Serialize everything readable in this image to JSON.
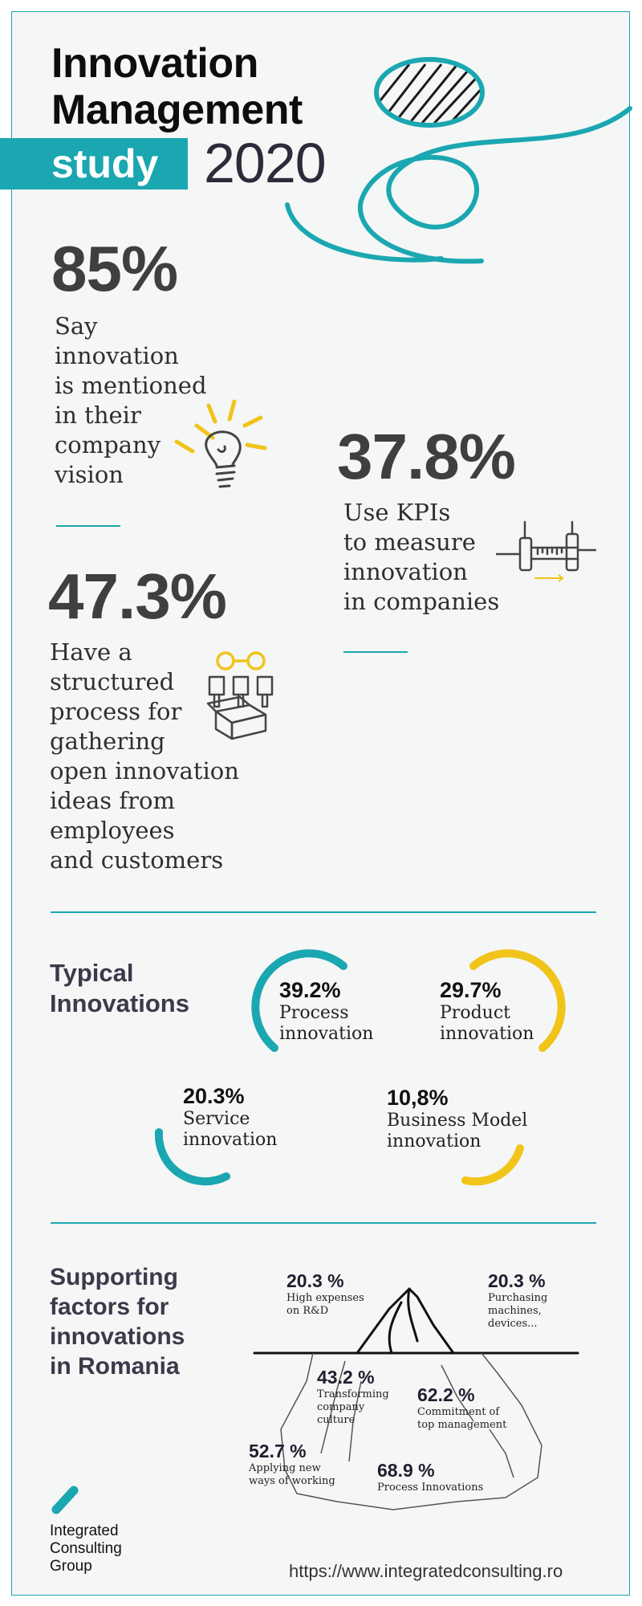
{
  "header": {
    "title_line1": "Innovation",
    "title_line2": "Management",
    "study_label": "study",
    "year": "2020"
  },
  "stats": [
    {
      "value": "85%",
      "lines": [
        "Say",
        "innovation",
        "is mentioned",
        "in their",
        "company",
        "vision"
      ],
      "icon": "lightbulb-icon"
    },
    {
      "value": "37.8%",
      "lines": [
        "Use KPIs",
        "to measure",
        "innovation",
        "in companies"
      ],
      "icon": "caliper-icon"
    },
    {
      "value": "47.3%",
      "lines": [
        "Have a",
        "structured",
        "process for",
        "gathering",
        "open innovation",
        "ideas from",
        "employees",
        "and customers"
      ],
      "icon": "idea-box-icon"
    }
  ],
  "typical": {
    "title_line1": "Typical",
    "title_line2": "Innovations",
    "items": [
      {
        "pct": "39.2%",
        "line1": "Process",
        "line2": "innovation",
        "color": "#1aa7b1"
      },
      {
        "pct": "29.7%",
        "line1": "Product",
        "line2": "innovation",
        "color": "#f0c419"
      },
      {
        "pct": "20.3%",
        "line1": "Service",
        "line2": "innovation",
        "color": "#1aa7b1"
      },
      {
        "pct": "10,8%",
        "line1": "Business Model",
        "line2": "innovation",
        "color": "#f0c419"
      }
    ]
  },
  "supporting": {
    "title_lines": [
      "Supporting",
      "factors for",
      "innovations",
      "in Romania"
    ],
    "factors": [
      {
        "pct": "20.3 %",
        "lines": [
          "High expenses",
          "on R&D"
        ]
      },
      {
        "pct": "20.3 %",
        "lines": [
          "Purchasing",
          "machines,",
          "devices..."
        ]
      },
      {
        "pct": "43.2 %",
        "lines": [
          "Transforming",
          "company",
          "culture"
        ]
      },
      {
        "pct": "62.2 %",
        "lines": [
          "Commitment of",
          "top management"
        ]
      },
      {
        "pct": "52.7 %",
        "lines": [
          "Applying new",
          "ways of working"
        ]
      },
      {
        "pct": "68.9 %",
        "lines": [
          "Process Innovations"
        ]
      }
    ]
  },
  "footer": {
    "logo_lines": [
      "Integrated",
      "Consulting",
      "Group"
    ],
    "url": "https://www.integratedconsulting.ro"
  },
  "colors": {
    "teal": "#1aa7b1",
    "yellow": "#f0c419",
    "dark": "#3f3f3f"
  }
}
